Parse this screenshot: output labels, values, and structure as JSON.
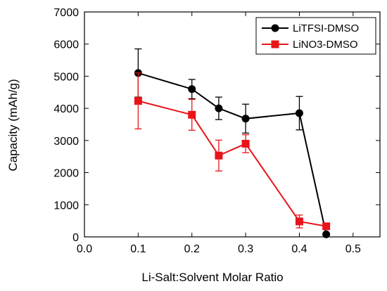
{
  "chart_data": {
    "type": "line",
    "xlabel": "Li-Salt:Solvent Molar Ratio",
    "ylabel": "Capacity (mAh/g)",
    "xlim": [
      0.0,
      0.55
    ],
    "ylim": [
      0,
      7000
    ],
    "xticks": [
      "0.0",
      "0.1",
      "0.2",
      "0.3",
      "0.4",
      "0.5"
    ],
    "yticks": [
      "0",
      "1000",
      "2000",
      "3000",
      "4000",
      "5000",
      "6000",
      "7000"
    ],
    "grid": false,
    "legend_position": "top-right",
    "series": [
      {
        "name": "LiTFSI-DMSO",
        "color": "#000000",
        "marker": "circle",
        "x": [
          0.1,
          0.2,
          0.25,
          0.3,
          0.4,
          0.45
        ],
        "y": [
          5100,
          4600,
          4000,
          3680,
          3850,
          80
        ],
        "error": [
          750,
          300,
          350,
          450,
          520,
          0
        ]
      },
      {
        "name": "LiNO3-DMSO",
        "color": "#e8141a",
        "marker": "square",
        "x": [
          0.1,
          0.2,
          0.25,
          0.3,
          0.4,
          0.45
        ],
        "y": [
          4230,
          3800,
          2530,
          2900,
          480,
          330
        ],
        "error": [
          870,
          480,
          480,
          280,
          200,
          0
        ]
      }
    ]
  }
}
